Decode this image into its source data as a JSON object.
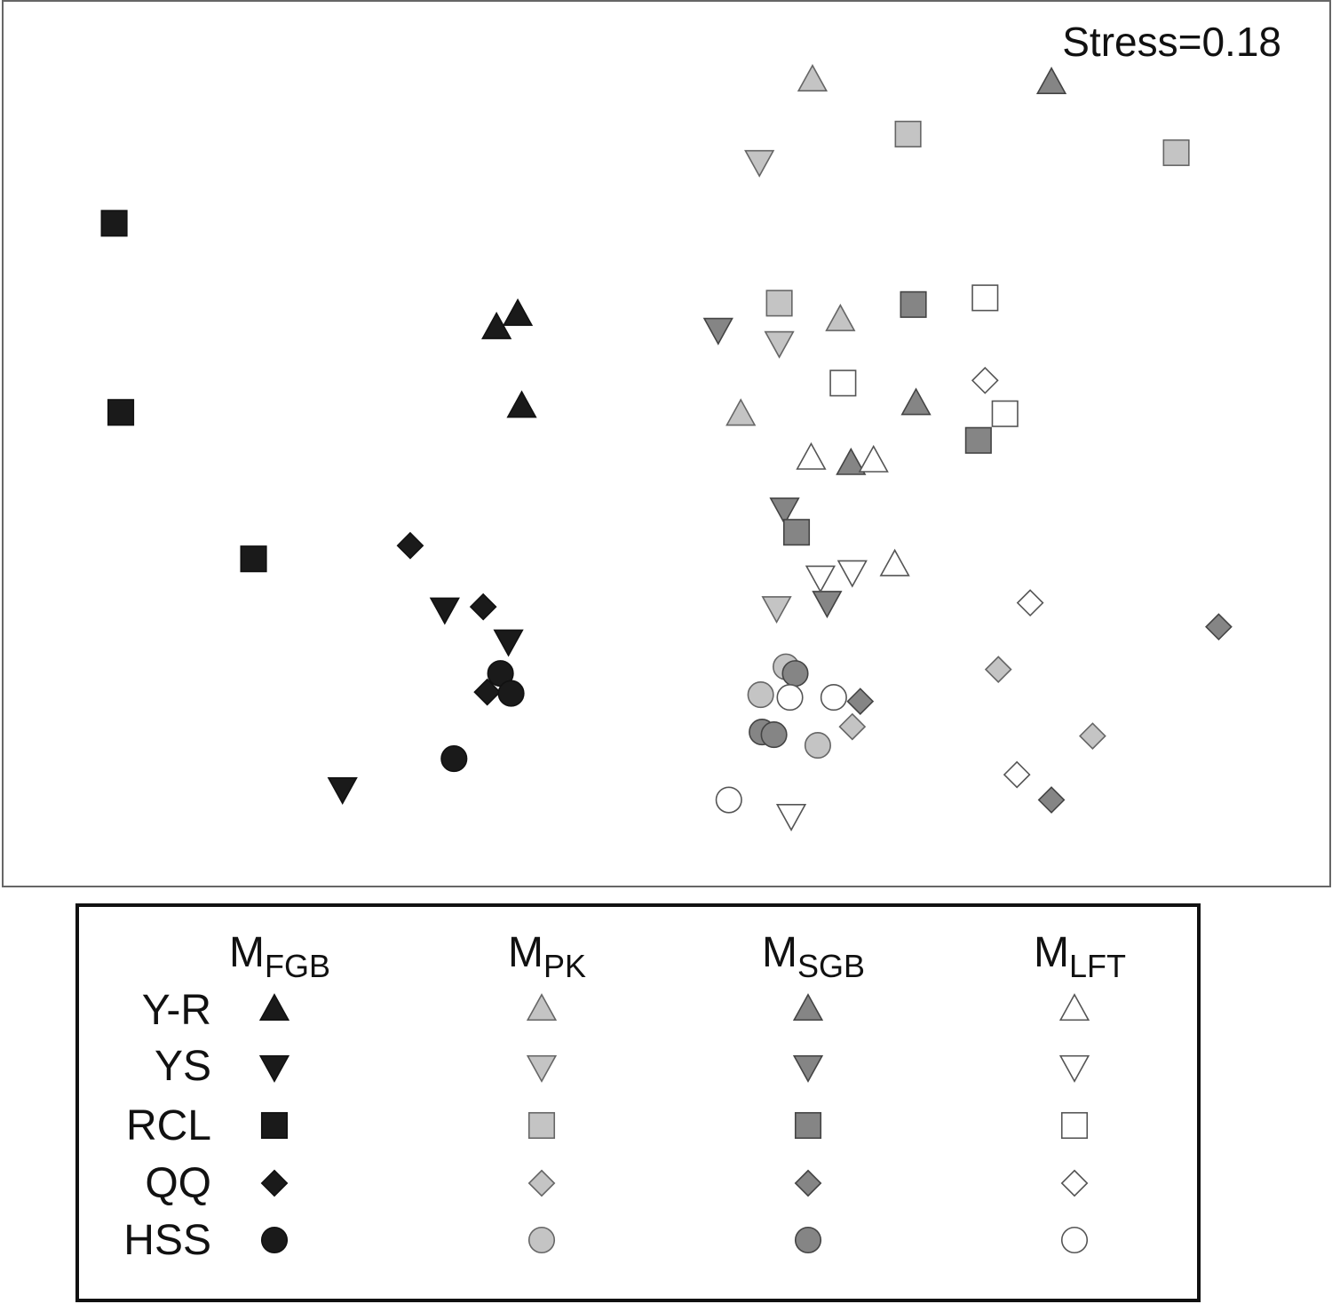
{
  "chart_data": {
    "type": "scatter",
    "analysis": "nMDS",
    "stress_label": "Stress=0.18",
    "axes_shown": false,
    "xlim": [
      0,
      1000
    ],
    "ylim": [
      0,
      665
    ],
    "groups": [
      {
        "key": "FGB",
        "label_main": "M",
        "label_sub": "FGB",
        "fill": "#1a1a1a",
        "stroke": "#111111"
      },
      {
        "key": "PK",
        "label_main": "M",
        "label_sub": "PK",
        "fill": "#c4c4c4",
        "stroke": "#666666"
      },
      {
        "key": "SGB",
        "label_main": "M",
        "label_sub": "SGB",
        "fill": "#858585",
        "stroke": "#444444"
      },
      {
        "key": "LFT",
        "label_main": "M",
        "label_sub": "LFT",
        "fill": "#ffffff",
        "stroke": "#555555"
      }
    ],
    "sites": [
      {
        "key": "YR",
        "label": "Y-R",
        "shape": "triangle-up"
      },
      {
        "key": "YS",
        "label": "YS",
        "shape": "triangle-down"
      },
      {
        "key": "RCL",
        "label": "RCL",
        "shape": "square"
      },
      {
        "key": "QQ",
        "label": "QQ",
        "shape": "diamond"
      },
      {
        "key": "HSS",
        "label": "HSS",
        "shape": "circle"
      }
    ],
    "points": [
      {
        "group": "FGB",
        "site": "RCL",
        "x": 84,
        "y": 498
      },
      {
        "group": "FGB",
        "site": "RCL",
        "x": 89,
        "y": 356
      },
      {
        "group": "FGB",
        "site": "RCL",
        "x": 189,
        "y": 246
      },
      {
        "group": "FGB",
        "site": "YR",
        "x": 388,
        "y": 429
      },
      {
        "group": "FGB",
        "site": "YR",
        "x": 372,
        "y": 419
      },
      {
        "group": "FGB",
        "site": "YR",
        "x": 391,
        "y": 360
      },
      {
        "group": "FGB",
        "site": "QQ",
        "x": 307,
        "y": 256
      },
      {
        "group": "FGB",
        "site": "QQ",
        "x": 362,
        "y": 210
      },
      {
        "group": "FGB",
        "site": "QQ",
        "x": 365,
        "y": 146
      },
      {
        "group": "FGB",
        "site": "YS",
        "x": 333,
        "y": 209
      },
      {
        "group": "FGB",
        "site": "YS",
        "x": 381,
        "y": 185
      },
      {
        "group": "FGB",
        "site": "YS",
        "x": 256,
        "y": 74
      },
      {
        "group": "FGB",
        "site": "HSS",
        "x": 375,
        "y": 160
      },
      {
        "group": "FGB",
        "site": "HSS",
        "x": 383,
        "y": 145
      },
      {
        "group": "FGB",
        "site": "HSS",
        "x": 340,
        "y": 96
      },
      {
        "group": "PK",
        "site": "YR",
        "x": 610,
        "y": 605
      },
      {
        "group": "PK",
        "site": "YR",
        "x": 631,
        "y": 425
      },
      {
        "group": "PK",
        "site": "YR",
        "x": 556,
        "y": 354
      },
      {
        "group": "PK",
        "site": "YS",
        "x": 570,
        "y": 545
      },
      {
        "group": "PK",
        "site": "YS",
        "x": 585,
        "y": 409
      },
      {
        "group": "PK",
        "site": "YS",
        "x": 583,
        "y": 210
      },
      {
        "group": "PK",
        "site": "RCL",
        "x": 682,
        "y": 565
      },
      {
        "group": "PK",
        "site": "RCL",
        "x": 884,
        "y": 551
      },
      {
        "group": "PK",
        "site": "RCL",
        "x": 585,
        "y": 438
      },
      {
        "group": "PK",
        "site": "QQ",
        "x": 750,
        "y": 163
      },
      {
        "group": "PK",
        "site": "QQ",
        "x": 821,
        "y": 113
      },
      {
        "group": "PK",
        "site": "QQ",
        "x": 640,
        "y": 120
      },
      {
        "group": "PK",
        "site": "HSS",
        "x": 590,
        "y": 165
      },
      {
        "group": "PK",
        "site": "HSS",
        "x": 571,
        "y": 144
      },
      {
        "group": "PK",
        "site": "HSS",
        "x": 614,
        "y": 106
      },
      {
        "group": "SGB",
        "site": "YR",
        "x": 790,
        "y": 603
      },
      {
        "group": "SGB",
        "site": "YR",
        "x": 688,
        "y": 362
      },
      {
        "group": "SGB",
        "site": "YR",
        "x": 639,
        "y": 317
      },
      {
        "group": "SGB",
        "site": "YS",
        "x": 539,
        "y": 419
      },
      {
        "group": "SGB",
        "site": "YS",
        "x": 589,
        "y": 284
      },
      {
        "group": "SGB",
        "site": "YS",
        "x": 621,
        "y": 214
      },
      {
        "group": "SGB",
        "site": "RCL",
        "x": 686,
        "y": 437
      },
      {
        "group": "SGB",
        "site": "RCL",
        "x": 735,
        "y": 335
      },
      {
        "group": "SGB",
        "site": "RCL",
        "x": 598,
        "y": 266
      },
      {
        "group": "SGB",
        "site": "QQ",
        "x": 916,
        "y": 195
      },
      {
        "group": "SGB",
        "site": "QQ",
        "x": 646,
        "y": 139
      },
      {
        "group": "SGB",
        "site": "QQ",
        "x": 790,
        "y": 65
      },
      {
        "group": "SGB",
        "site": "HSS",
        "x": 597,
        "y": 160
      },
      {
        "group": "SGB",
        "site": "HSS",
        "x": 572,
        "y": 116
      },
      {
        "group": "SGB",
        "site": "HSS",
        "x": 581,
        "y": 114
      },
      {
        "group": "LFT",
        "site": "YR",
        "x": 609,
        "y": 321
      },
      {
        "group": "LFT",
        "site": "YR",
        "x": 656,
        "y": 319
      },
      {
        "group": "LFT",
        "site": "YR",
        "x": 672,
        "y": 241
      },
      {
        "group": "LFT",
        "site": "YS",
        "x": 616,
        "y": 233
      },
      {
        "group": "LFT",
        "site": "YS",
        "x": 640,
        "y": 237
      },
      {
        "group": "LFT",
        "site": "YS",
        "x": 594,
        "y": 54
      },
      {
        "group": "LFT",
        "site": "RCL",
        "x": 740,
        "y": 442
      },
      {
        "group": "LFT",
        "site": "RCL",
        "x": 633,
        "y": 378
      },
      {
        "group": "LFT",
        "site": "RCL",
        "x": 755,
        "y": 355
      },
      {
        "group": "LFT",
        "site": "QQ",
        "x": 740,
        "y": 380
      },
      {
        "group": "LFT",
        "site": "QQ",
        "x": 774,
        "y": 213
      },
      {
        "group": "LFT",
        "site": "QQ",
        "x": 764,
        "y": 84
      },
      {
        "group": "LFT",
        "site": "HSS",
        "x": 593,
        "y": 142
      },
      {
        "group": "LFT",
        "site": "HSS",
        "x": 626,
        "y": 142
      },
      {
        "group": "LFT",
        "site": "HSS",
        "x": 547,
        "y": 65
      }
    ]
  }
}
